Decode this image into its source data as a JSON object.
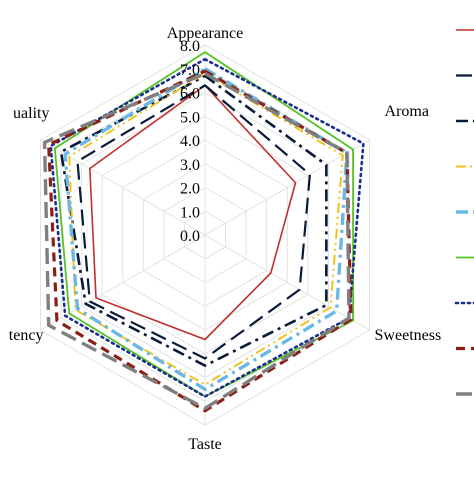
{
  "chart_data": {
    "type": "radar",
    "axes": [
      "Appearance",
      "Aroma",
      "Sweetness",
      "Taste",
      "Consistency",
      "Overall quality"
    ],
    "axis_label_texts": [
      "Appearance",
      "Aroma",
      "Sweetness",
      "Taste",
      "tency",
      "uality"
    ],
    "radial_ticks": [
      "0.0",
      "1.0",
      "2.0",
      "3.0",
      "4.0",
      "5.0",
      "6.0",
      "7.0",
      "8.0"
    ],
    "rlim": [
      0,
      8
    ],
    "grid": true,
    "legend_position": "right",
    "series": [
      {
        "color": "#c0302b",
        "dash": "solid",
        "width": 1.6,
        "values": [
          6.3,
          4.4,
          3.2,
          4.4,
          5.3,
          5.6
        ]
      },
      {
        "color": "#0a1a3a",
        "dash": "long-dash",
        "width": 2.2,
        "values": [
          6.3,
          5.1,
          4.6,
          5.2,
          5.6,
          6.2
        ]
      },
      {
        "color": "#0a1a3a",
        "dash": "dash-dot",
        "width": 2.6,
        "values": [
          6.7,
          5.9,
          5.9,
          5.5,
          5.8,
          7.0
        ]
      },
      {
        "color": "#f2c21b",
        "dash": "dash-dot-dot",
        "width": 2.0,
        "values": [
          6.8,
          6.7,
          6.1,
          6.3,
          6.3,
          6.6
        ]
      },
      {
        "color": "#6ab8e4",
        "dash": "dash-dot",
        "width": 3.4,
        "values": [
          7.0,
          6.9,
          6.4,
          6.5,
          6.2,
          6.8
        ]
      },
      {
        "color": "#53c225",
        "dash": "solid",
        "width": 1.8,
        "values": [
          7.7,
          7.2,
          7.2,
          6.8,
          6.6,
          7.3
        ]
      },
      {
        "color": "#1a2e8c",
        "dash": "dotted",
        "width": 2.6,
        "values": [
          7.4,
          7.7,
          7.0,
          6.8,
          6.8,
          7.5
        ]
      },
      {
        "color": "#8b1f16",
        "dash": "dashed",
        "width": 3.2,
        "values": [
          6.9,
          6.9,
          7.1,
          7.4,
          7.2,
          7.6
        ]
      },
      {
        "color": "#7f7f7f",
        "dash": "long-dash",
        "width": 3.4,
        "values": [
          6.8,
          6.9,
          7.0,
          7.3,
          7.6,
          7.8
        ]
      }
    ]
  }
}
